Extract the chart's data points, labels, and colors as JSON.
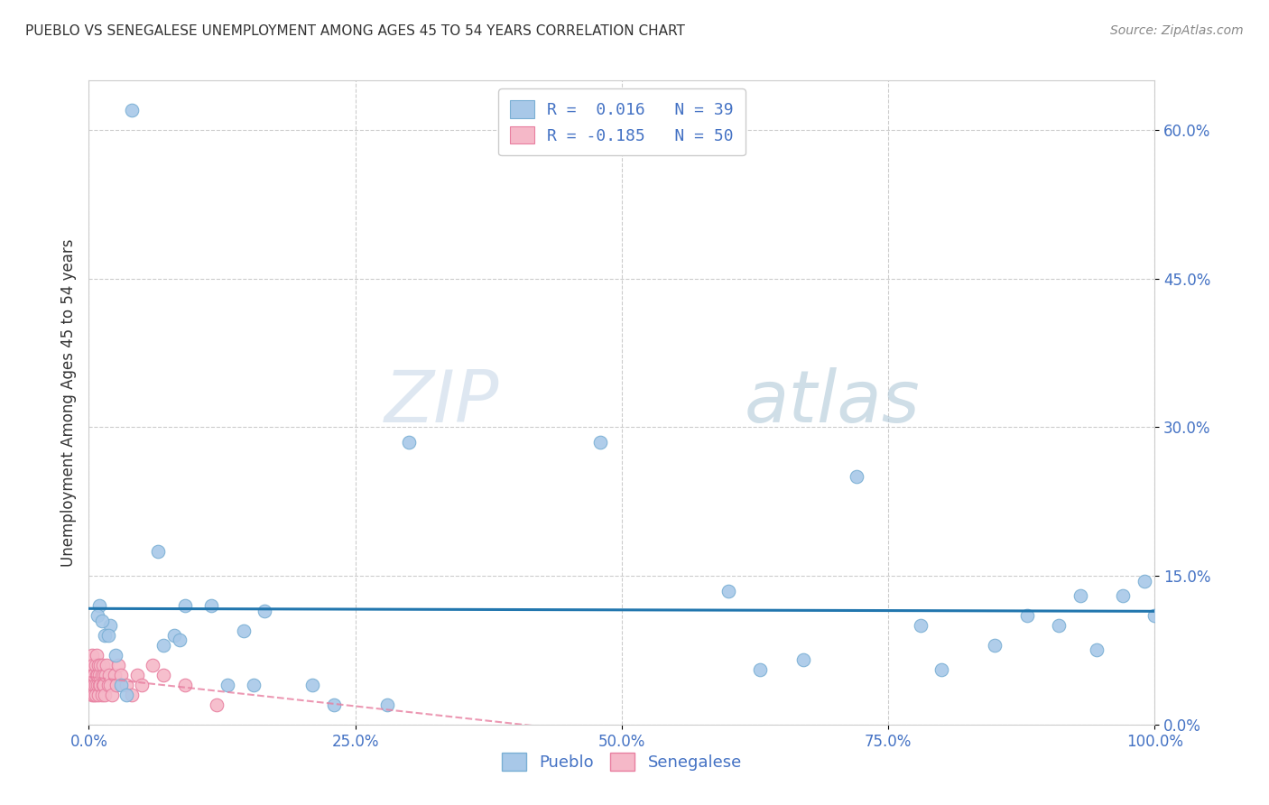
{
  "title": "PUEBLO VS SENEGALESE UNEMPLOYMENT AMONG AGES 45 TO 54 YEARS CORRELATION CHART",
  "source": "Source: ZipAtlas.com",
  "ylabel": "Unemployment Among Ages 45 to 54 years",
  "xlim": [
    0.0,
    1.0
  ],
  "ylim": [
    0.0,
    0.65
  ],
  "xticks": [
    0.0,
    0.25,
    0.5,
    0.75,
    1.0
  ],
  "xtick_labels": [
    "0.0%",
    "25.0%",
    "50.0%",
    "75.0%",
    "100.0%"
  ],
  "yticks": [
    0.0,
    0.15,
    0.3,
    0.45,
    0.6
  ],
  "ytick_labels": [
    "0.0%",
    "15.0%",
    "30.0%",
    "45.0%",
    "60.0%"
  ],
  "pueblo_color": "#a8c8e8",
  "pueblo_edge_color": "#7aafd4",
  "senegalese_color": "#f5b8c8",
  "senegalese_edge_color": "#e87fa0",
  "trend_pueblo_color": "#2176ae",
  "trend_senegalese_color": "#e87fa0",
  "legend_pueblo_r": "R =  0.016",
  "legend_pueblo_n": "N = 39",
  "legend_senegalese_r": "R = -0.185",
  "legend_senegalese_n": "N = 50",
  "pueblo_x": [
    0.04,
    0.01,
    0.02,
    0.015,
    0.025,
    0.008,
    0.012,
    0.018,
    0.03,
    0.035,
    0.065,
    0.07,
    0.08,
    0.085,
    0.09,
    0.115,
    0.13,
    0.145,
    0.155,
    0.165,
    0.48,
    0.63,
    0.72,
    0.8,
    0.85,
    0.88,
    0.91,
    0.945,
    0.97,
    0.99,
    0.21,
    0.23,
    0.28,
    0.3,
    0.6,
    0.67,
    0.78,
    0.93,
    1.0
  ],
  "pueblo_y": [
    0.62,
    0.12,
    0.1,
    0.09,
    0.07,
    0.11,
    0.105,
    0.09,
    0.04,
    0.03,
    0.175,
    0.08,
    0.09,
    0.085,
    0.12,
    0.12,
    0.04,
    0.095,
    0.04,
    0.115,
    0.285,
    0.055,
    0.25,
    0.055,
    0.08,
    0.11,
    0.1,
    0.075,
    0.13,
    0.145,
    0.04,
    0.02,
    0.02,
    0.285,
    0.135,
    0.065,
    0.1,
    0.13,
    0.11
  ],
  "senegalese_x": [
    0.001,
    0.002,
    0.002,
    0.003,
    0.003,
    0.003,
    0.004,
    0.004,
    0.004,
    0.005,
    0.005,
    0.005,
    0.006,
    0.006,
    0.006,
    0.007,
    0.007,
    0.008,
    0.008,
    0.009,
    0.009,
    0.01,
    0.01,
    0.011,
    0.011,
    0.012,
    0.012,
    0.013,
    0.013,
    0.014,
    0.014,
    0.015,
    0.016,
    0.017,
    0.018,
    0.019,
    0.02,
    0.022,
    0.024,
    0.026,
    0.028,
    0.03,
    0.035,
    0.04,
    0.045,
    0.05,
    0.06,
    0.07,
    0.09,
    0.12
  ],
  "senegalese_y": [
    0.05,
    0.04,
    0.06,
    0.03,
    0.05,
    0.07,
    0.04,
    0.06,
    0.05,
    0.03,
    0.04,
    0.05,
    0.06,
    0.04,
    0.03,
    0.05,
    0.07,
    0.04,
    0.05,
    0.06,
    0.03,
    0.04,
    0.05,
    0.06,
    0.04,
    0.03,
    0.05,
    0.04,
    0.06,
    0.05,
    0.04,
    0.03,
    0.05,
    0.06,
    0.04,
    0.05,
    0.04,
    0.03,
    0.05,
    0.04,
    0.06,
    0.05,
    0.04,
    0.03,
    0.05,
    0.04,
    0.06,
    0.05,
    0.04,
    0.02
  ],
  "background_color": "#ffffff",
  "grid_color": "#cccccc",
  "watermark_zip": "ZIP",
  "watermark_atlas": "atlas",
  "marker_size": 110
}
